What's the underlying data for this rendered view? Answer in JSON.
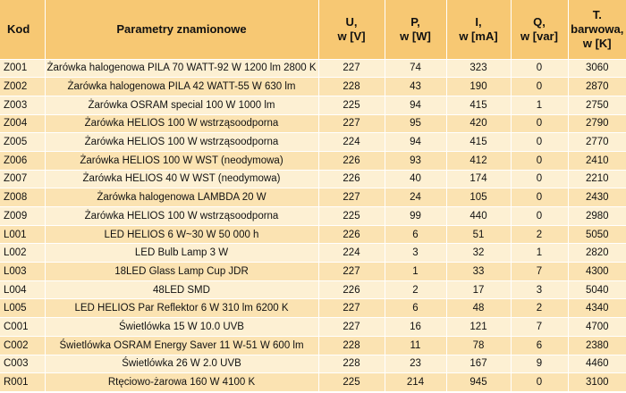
{
  "table": {
    "headers": {
      "kod": "Kod",
      "param": "Parametry znamionowe",
      "u_l1": "U,",
      "u_l2": "w [V]",
      "p_l1": "P,",
      "p_l2": "w [W]",
      "i_l1": "I,",
      "i_l2": "w [mA]",
      "q_l1": "Q,",
      "q_l2": "w [var]",
      "t_l1": "T.",
      "t_l2": "barwowa,",
      "t_l3": "w [K]"
    },
    "rows": [
      {
        "kod": "Z001",
        "param": "Żarówka halogenowa PILA 70 WATT-92 W 1200 lm 2800 K",
        "u": "227",
        "p": "74",
        "i": "323",
        "q": "0",
        "t": "3060"
      },
      {
        "kod": "Z002",
        "param": "Żarówka halogenowa PILA 42 WATT-55 W 630 lm",
        "u": "228",
        "p": "43",
        "i": "190",
        "q": "0",
        "t": "2870"
      },
      {
        "kod": "Z003",
        "param": "Żarówka OSRAM special 100 W 1000 lm",
        "u": "225",
        "p": "94",
        "i": "415",
        "q": "1",
        "t": "2750"
      },
      {
        "kod": "Z004",
        "param": "Żarówka HELIOS 100 W wstrząsoodporna",
        "u": "227",
        "p": "95",
        "i": "420",
        "q": "0",
        "t": "2790"
      },
      {
        "kod": "Z005",
        "param": "Żarówka HELIOS 100 W wstrząsoodporna",
        "u": "224",
        "p": "94",
        "i": "415",
        "q": "0",
        "t": "2770"
      },
      {
        "kod": "Z006",
        "param": "Żarówka HELIOS 100 W WST (neodymowa)",
        "u": "226",
        "p": "93",
        "i": "412",
        "q": "0",
        "t": "2410"
      },
      {
        "kod": "Z007",
        "param": "Żarówka HELIOS 40 W WST (neodymowa)",
        "u": "226",
        "p": "40",
        "i": "174",
        "q": "0",
        "t": "2210"
      },
      {
        "kod": "Z008",
        "param": "Żarówka halogenowa LAMBDA 20 W",
        "u": "227",
        "p": "24",
        "i": "105",
        "q": "0",
        "t": "2430"
      },
      {
        "kod": "Z009",
        "param": "Żarówka HELIOS 100 W wstrząsoodporna",
        "u": "225",
        "p": "99",
        "i": "440",
        "q": "0",
        "t": "2980"
      },
      {
        "kod": "L001",
        "param": "LED HELIOS 6 W~30 W 50 000 h",
        "u": "226",
        "p": "6",
        "i": "51",
        "q": "2",
        "t": "5050"
      },
      {
        "kod": "L002",
        "param": "LED Bulb Lamp 3 W",
        "u": "224",
        "p": "3",
        "i": "32",
        "q": "1",
        "t": "2820"
      },
      {
        "kod": "L003",
        "param": "18LED Glass Lamp Cup JDR",
        "u": "227",
        "p": "1",
        "i": "33",
        "q": "7",
        "t": "4300"
      },
      {
        "kod": "L004",
        "param": "48LED SMD",
        "u": "226",
        "p": "2",
        "i": "17",
        "q": "3",
        "t": "5040"
      },
      {
        "kod": "L005",
        "param": "LED HELIOS Par Reflektor 6 W 310 lm 6200 K",
        "u": "227",
        "p": "6",
        "i": "48",
        "q": "2",
        "t": "4340"
      },
      {
        "kod": "C001",
        "param": "Świetlówka 15 W 10.0 UVB",
        "u": "227",
        "p": "16",
        "i": "121",
        "q": "7",
        "t": "4700"
      },
      {
        "kod": "C002",
        "param": "Świetlówka OSRAM Energy Saver 11 W-51 W 600 lm",
        "u": "228",
        "p": "11",
        "i": "78",
        "q": "6",
        "t": "2380"
      },
      {
        "kod": "C003",
        "param": "Świetlówka 26 W 2.0 UVB",
        "u": "228",
        "p": "23",
        "i": "167",
        "q": "9",
        "t": "4460"
      },
      {
        "kod": "R001",
        "param": "Rtęciowo-żarowa 160 W 4100 K",
        "u": "225",
        "p": "214",
        "i": "945",
        "q": "0",
        "t": "3100"
      }
    ]
  }
}
